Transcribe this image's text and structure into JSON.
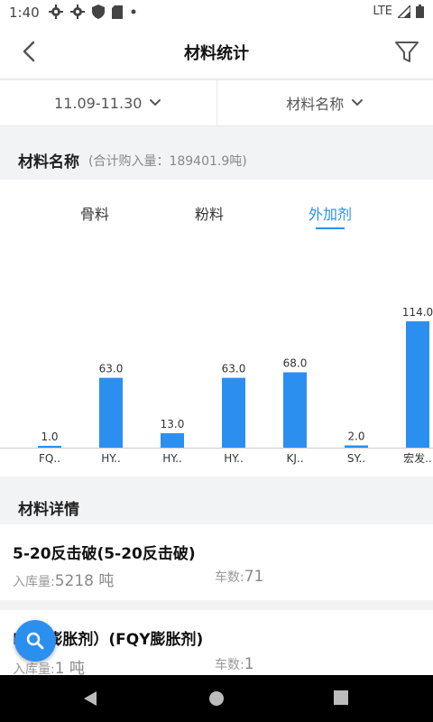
{
  "status_bar": {
    "time": "1:40",
    "network": "LTE",
    "icons": [
      "gear-icon",
      "gear-icon",
      "shield-icon",
      "sdcard-icon",
      "dot-icon",
      "signal-icon",
      "battery-icon"
    ]
  },
  "app_bar": {
    "title": "材料统计",
    "back_icon": "chevron-left-icon",
    "filter_icon": "funnel-icon"
  },
  "filters": [
    {
      "label": "11.09-11.30",
      "icon": "chevron-down-icon"
    },
    {
      "label": "材料名称",
      "icon": "chevron-down-icon"
    }
  ],
  "summary": {
    "title": "材料名称",
    "subtitle": "(合计购入量：189401.9吨)"
  },
  "tabs": [
    {
      "label": "骨料",
      "active": false
    },
    {
      "label": "粉料",
      "active": false
    },
    {
      "label": "外加剂",
      "active": true
    }
  ],
  "chart_data": {
    "type": "bar",
    "categories": [
      "FQ..",
      "HY..",
      "HY..",
      "HY..",
      "KJ..",
      "SY..",
      "宏发.."
    ],
    "values": [
      1.0,
      63.0,
      13.0,
      63.0,
      68.0,
      2.0,
      114.0
    ],
    "value_labels": [
      "1.0",
      "63.0",
      "13.0",
      "63.0",
      "68.0",
      "2.0",
      "114.0"
    ],
    "ylim": [
      0,
      114
    ],
    "grid": false,
    "bar_color": "#2b8ff0"
  },
  "details_section": {
    "title": "材料详情"
  },
  "details": [
    {
      "title": "5-20反击破(5-20反击破)",
      "in_label": "入库量:",
      "in_value": "5218",
      "in_unit": " 吨",
      "trucks_label": "车数:",
      "trucks_value": "71"
    },
    {
      "title": "FQY膨胀剂）(FQY膨胀剂)",
      "in_label": "入库量:",
      "in_value": "1",
      "in_unit": " 吨",
      "trucks_label": "车数:",
      "trucks_value": "1"
    }
  ],
  "fab": {
    "icon": "search-icon"
  },
  "nav_bar": {
    "icons": [
      "back-triangle-icon",
      "home-circle-icon",
      "recents-square-icon"
    ]
  },
  "colors": {
    "accent": "#2b8ff0",
    "background": "#f2f3f5"
  }
}
